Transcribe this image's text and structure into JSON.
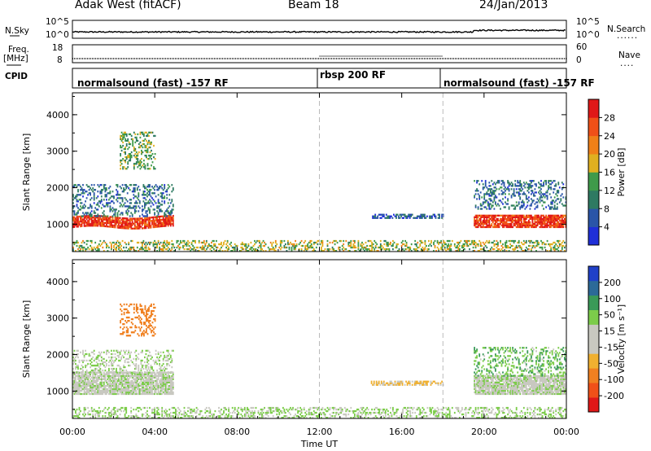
{
  "header": {
    "site": "Adak West (fitACF)",
    "beam": "Beam 18",
    "date": "24/Jan/2013"
  },
  "strip_labels": {
    "nsky": "N.Sky",
    "freq_line1": "Freq.",
    "freq_line2": "[MHz]",
    "cpid": "CPID",
    "nsearch": "N.Search",
    "nave": "Nave",
    "nsky_ticks": [
      "10^5",
      "10^0"
    ],
    "nsearch_ticks": [
      "10^5",
      "10^0"
    ],
    "freq_ticks": [
      "18",
      "8"
    ],
    "nave_ticks": [
      "60",
      "0"
    ],
    "dots": "......",
    "nave_dots": "...."
  },
  "cpid_segments": [
    {
      "label": "normalsound (fast) -157 RF",
      "start_hour": 0,
      "end_hour": 12
    },
    {
      "label": "rbsp 200 RF",
      "start_hour": 12,
      "end_hour": 18
    },
    {
      "label": "normalsound (fast) -157 RF",
      "start_hour": 18,
      "end_hour": 24
    }
  ],
  "x_axis": {
    "title": "Time UT",
    "tick_labels": [
      "00:00",
      "04:00",
      "08:00",
      "12:00",
      "16:00",
      "20:00",
      "00:00"
    ],
    "tick_hours": [
      0,
      4,
      8,
      12,
      16,
      20,
      24
    ],
    "range_hours": [
      0,
      24
    ]
  },
  "colors": {
    "power_scale": [
      "#1f2fd8",
      "#2a55a8",
      "#2e7a62",
      "#3f9a4a",
      "#e0b020",
      "#f08018",
      "#f05018",
      "#e01818"
    ],
    "velocity_scale": [
      "#2040c8",
      "#2c6a98",
      "#3a9a58",
      "#7ccc4a",
      "#c8c8c0",
      "#c8c8c0",
      "#f0b030",
      "#f08020",
      "#f05018",
      "#e01818"
    ]
  },
  "chart_data": [
    {
      "type": "heatmap",
      "name": "power",
      "ylabel": "Slant Range [km]",
      "yticks": [
        "1000",
        "2000",
        "3000",
        "4000"
      ],
      "ylim": [
        250,
        4600
      ],
      "xlim": [
        0,
        24
      ],
      "colorbar_label": "Power [dB]",
      "colorbar_ticks": [
        "4",
        "8",
        "12",
        "16",
        "20",
        "24",
        "28"
      ],
      "features": [
        {
          "region": "main band",
          "hours": [
            0,
            4.9
          ],
          "range_km": [
            900,
            1200
          ],
          "power_db": 28
        },
        {
          "region": "upper scatter",
          "hours": [
            0,
            4.9
          ],
          "range_km": [
            1200,
            2100
          ],
          "power_db": 8
        },
        {
          "region": "high patch",
          "hours": [
            2.3,
            4.0
          ],
          "range_km": [
            2500,
            3500
          ],
          "power_db": 14
        },
        {
          "region": "evening main band",
          "hours": [
            19.5,
            24
          ],
          "range_km": [
            900,
            1250
          ],
          "power_db": 28
        },
        {
          "region": "evening upper scatter",
          "hours": [
            19.5,
            24
          ],
          "range_km": [
            1400,
            2200
          ],
          "power_db": 8
        },
        {
          "region": "midday thin echo",
          "hours": [
            14.5,
            18
          ],
          "range_km": [
            1150,
            1250
          ],
          "power_db": 6
        },
        {
          "region": "near-range clutter",
          "hours": [
            0,
            24
          ],
          "range_km": [
            250,
            550
          ],
          "power_db": 16
        }
      ]
    },
    {
      "type": "heatmap",
      "name": "velocity",
      "ylabel": "Slant Range [km]",
      "yticks": [
        "1000",
        "2000",
        "3000",
        "4000"
      ],
      "ylim": [
        250,
        4600
      ],
      "xlim": [
        0,
        24
      ],
      "colorbar_label": "Velocity [m s⁻¹]",
      "colorbar_ticks": [
        "200",
        "100",
        "50",
        "15",
        "-15",
        "-50",
        "-100",
        "-200"
      ],
      "features": [
        {
          "region": "main band",
          "hours": [
            0,
            4.9
          ],
          "range_km": [
            900,
            1500
          ],
          "velocity": 0
        },
        {
          "region": "upper scatter",
          "hours": [
            0,
            4.9
          ],
          "range_km": [
            1500,
            2100
          ],
          "velocity": 10
        },
        {
          "region": "high patch",
          "hours": [
            2.3,
            4.0
          ],
          "range_km": [
            2500,
            3400
          ],
          "velocity": -150
        },
        {
          "region": "evening main band",
          "hours": [
            19.5,
            24
          ],
          "range_km": [
            900,
            1400
          ],
          "velocity": 0
        },
        {
          "region": "evening upper scatter",
          "hours": [
            19.5,
            24
          ],
          "range_km": [
            1400,
            2200
          ],
          "velocity": 40
        },
        {
          "region": "midday thin echo",
          "hours": [
            14.5,
            18
          ],
          "range_km": [
            1150,
            1250
          ],
          "velocity": -60
        },
        {
          "region": "near-range clutter",
          "hours": [
            0,
            24
          ],
          "range_km": [
            250,
            550
          ],
          "velocity": 20
        }
      ]
    }
  ]
}
